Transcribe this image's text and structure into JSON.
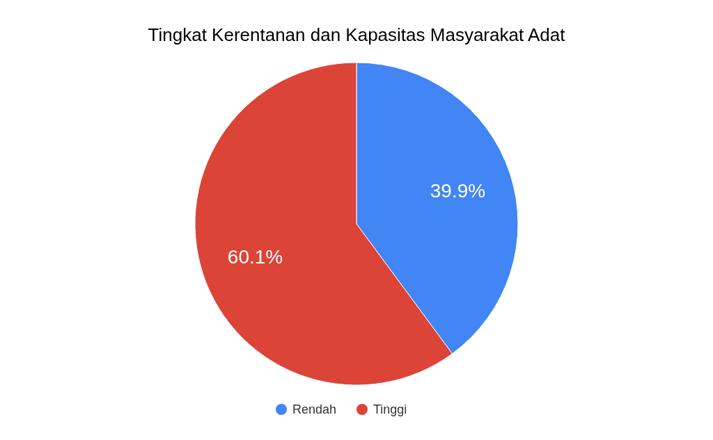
{
  "chart_data": {
    "type": "pie",
    "title": "Tingkat Kerentanan dan Kapasitas Masyarakat Adat",
    "categories": [
      "Rendah",
      "Tinggi"
    ],
    "values": [
      39.9,
      60.1
    ],
    "colors": [
      "#4285f4",
      "#db4437"
    ],
    "value_labels": [
      "39.9%",
      "60.1%"
    ],
    "legend": "bottom"
  }
}
